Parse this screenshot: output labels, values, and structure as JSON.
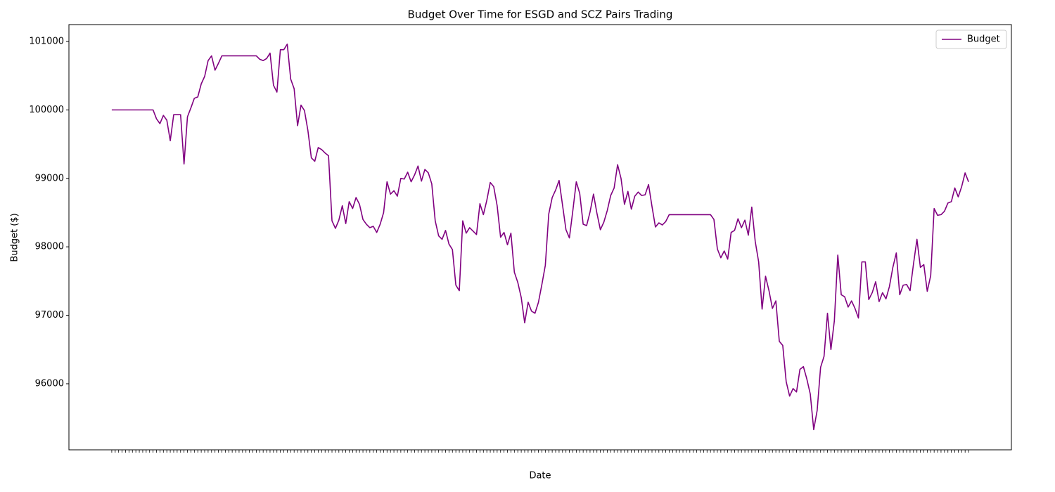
{
  "chart_data": {
    "type": "line",
    "title": "Budget Over Time for ESGD and SCZ Pairs Trading",
    "x_label": "Date",
    "y_label": "Budget ($)",
    "categories": [
      null,
      null,
      null,
      null,
      null,
      null,
      null,
      null,
      null,
      null,
      null,
      null,
      null,
      null,
      null,
      null,
      null,
      null,
      null,
      null,
      null,
      null,
      null,
      null,
      null,
      null,
      null,
      null,
      null,
      null,
      null,
      null,
      null,
      null,
      null,
      null,
      null,
      null,
      null,
      null,
      null,
      null,
      null,
      null,
      null,
      null,
      null,
      null,
      null,
      null,
      null,
      null,
      null,
      null,
      null,
      null,
      null,
      null,
      null,
      null,
      null,
      null,
      null,
      null,
      null,
      null,
      null,
      null,
      null,
      null,
      null,
      null,
      null,
      null,
      null,
      null,
      null,
      null,
      null,
      null,
      null,
      null,
      null,
      null,
      null,
      null,
      null,
      null,
      null,
      null,
      null,
      null,
      null,
      null,
      null,
      null,
      null,
      null,
      null,
      null,
      null,
      null,
      null,
      null,
      null,
      null,
      null,
      null,
      null,
      null,
      null,
      null,
      null,
      null,
      null,
      null,
      null,
      null,
      null,
      null,
      null,
      null,
      null,
      null,
      null,
      null,
      null,
      null,
      null,
      null,
      null,
      null,
      null,
      null,
      null,
      null,
      null,
      null,
      null,
      null,
      null,
      null,
      null,
      null,
      null,
      null,
      null,
      null,
      null,
      null,
      null,
      null,
      null,
      null,
      null,
      null,
      null,
      null,
      null,
      null,
      null,
      null,
      null,
      null,
      null,
      null,
      null,
      null,
      null,
      null,
      null,
      null,
      null,
      null,
      null,
      null,
      null,
      null,
      null,
      null,
      null,
      null,
      null,
      null,
      null,
      null,
      null,
      null,
      null,
      null,
      null,
      null,
      null,
      null,
      null,
      null,
      null,
      null,
      null,
      null,
      null,
      null,
      null,
      null,
      null,
      null,
      null,
      null,
      null,
      null,
      null,
      null,
      null,
      null,
      null,
      null,
      null,
      null,
      null,
      null,
      null,
      null,
      null,
      null,
      null,
      null,
      null,
      null,
      null,
      null,
      null,
      null,
      null,
      null,
      null,
      null,
      null,
      null,
      null,
      null,
      null,
      null,
      null,
      null,
      null,
      null,
      null,
      null,
      null,
      null
    ],
    "series": [
      {
        "name": "Budget",
        "color": "#800080",
        "values": [
          100000,
          100000,
          100000,
          100000,
          100000,
          100000,
          100000,
          100000,
          100000,
          100000,
          100000,
          100000,
          100000,
          99870,
          99800,
          99920,
          99850,
          99550,
          99930,
          99930,
          99930,
          99210,
          99900,
          100030,
          100170,
          100190,
          100380,
          100490,
          100720,
          100790,
          100580,
          100680,
          100790,
          100790,
          100790,
          100790,
          100790,
          100790,
          100790,
          100790,
          100790,
          100790,
          100790,
          100740,
          100720,
          100750,
          100830,
          100360,
          100260,
          100880,
          100880,
          100960,
          100450,
          100310,
          99770,
          100070,
          99990,
          99700,
          99300,
          99250,
          99450,
          99420,
          99370,
          99330,
          98380,
          98270,
          98390,
          98600,
          98340,
          98660,
          98560,
          98720,
          98620,
          98400,
          98330,
          98280,
          98300,
          98210,
          98330,
          98500,
          98950,
          98770,
          98820,
          98740,
          99000,
          98990,
          99090,
          98950,
          99050,
          99180,
          98960,
          99130,
          99080,
          98920,
          98380,
          98160,
          98110,
          98240,
          98040,
          97960,
          97440,
          97360,
          98380,
          98200,
          98280,
          98230,
          98180,
          98630,
          98470,
          98680,
          98940,
          98880,
          98600,
          98140,
          98210,
          98030,
          98200,
          97630,
          97480,
          97260,
          96890,
          97190,
          97060,
          97030,
          97190,
          97450,
          97730,
          98480,
          98720,
          98830,
          98970,
          98610,
          98250,
          98130,
          98530,
          98950,
          98780,
          98330,
          98310,
          98510,
          98770,
          98490,
          98250,
          98360,
          98530,
          98750,
          98860,
          99200,
          99000,
          98620,
          98810,
          98550,
          98740,
          98800,
          98750,
          98760,
          98910,
          98590,
          98290,
          98350,
          98320,
          98370,
          98470,
          98470,
          98470,
          98470,
          98470,
          98470,
          98470,
          98470,
          98470,
          98470,
          98470,
          98470,
          98470,
          98400,
          97970,
          97840,
          97940,
          97820,
          98210,
          98240,
          98410,
          98280,
          98390,
          98170,
          98580,
          98080,
          97780,
          97090,
          97570,
          97360,
          97100,
          97210,
          96620,
          96560,
          96030,
          95820,
          95930,
          95880,
          96210,
          96250,
          96070,
          95850,
          95330,
          95610,
          96240,
          96400,
          97030,
          96500,
          96920,
          97880,
          97300,
          97270,
          97120,
          97210,
          97100,
          96960,
          97780,
          97780,
          97230,
          97330,
          97490,
          97200,
          97330,
          97240,
          97420,
          97700,
          97910,
          97300,
          97440,
          97450,
          97360,
          97750,
          98110,
          97700,
          97740,
          97350,
          97580,
          98560,
          98460,
          98470,
          98520,
          98640,
          98660,
          98860,
          98730,
          98880,
          99080,
          98950
        ]
      }
    ],
    "ylim": [
      95035,
      101246
    ],
    "yticks": [
      96000,
      97000,
      98000,
      99000,
      100000,
      101000
    ],
    "legend": "upper right"
  }
}
